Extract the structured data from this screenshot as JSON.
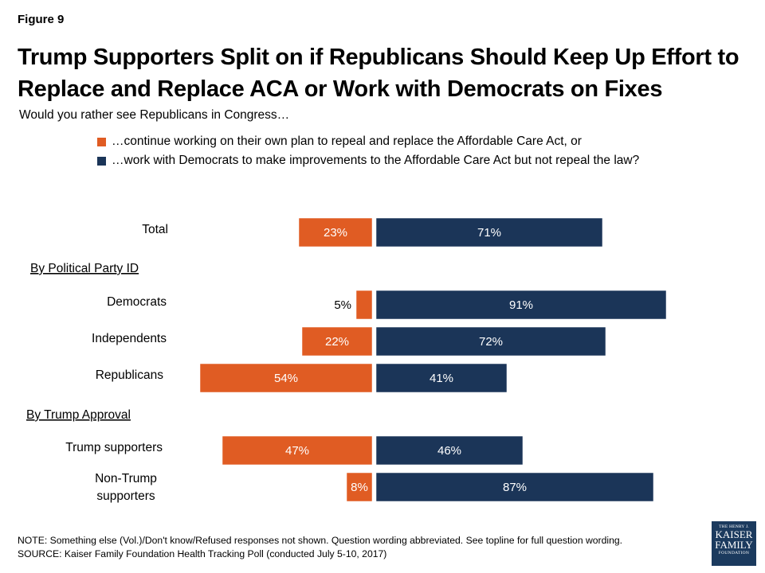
{
  "figure_label": "Figure 9",
  "title": "Trump Supporters Split on if Republicans Should Keep Up Effort to Replace and Replace ACA or Work with Democrats on Fixes",
  "subtitle": "Would you rather see Republicans in Congress…",
  "legend": [
    {
      "label": "…continue working on their own plan to repeal and replace the Affordable Care Act, or",
      "color": "#e05c23"
    },
    {
      "label": "…work with Democrats to make improvements to the Affordable Care Act but not repeal the law?",
      "color": "#1b3558"
    }
  ],
  "chart_data": {
    "type": "bar",
    "orientation": "horizontal-diverging",
    "group_headers": [
      "By Political Party ID",
      "By Trump Approval"
    ],
    "categories": [
      "Total",
      "Democrats",
      "Independents",
      "Republicans",
      "Trump supporters",
      "Non-Trump supporters"
    ],
    "category_groups": [
      null,
      "By Political Party ID",
      "By Political Party ID",
      "By Political Party ID",
      "By Trump Approval",
      "By Trump Approval"
    ],
    "series": [
      {
        "values": [
          23,
          5,
          22,
          54,
          47,
          8
        ],
        "labels": [
          "23%",
          "5%",
          "22%",
          "54%",
          "47%",
          "8%"
        ],
        "color": "#e05c23",
        "direction": "left"
      },
      {
        "values": [
          71,
          91,
          72,
          41,
          46,
          87
        ],
        "labels": [
          "71%",
          "91%",
          "72%",
          "41%",
          "46%",
          "87%"
        ],
        "color": "#1b3558",
        "direction": "right"
      }
    ],
    "grid": false
  },
  "note": "NOTE: Something else (Vol.)/Don't know/Refused responses not shown. Question wording abbreviated. See topline for full question wording.",
  "source": "SOURCE: Kaiser Family Foundation Health Tracking Poll (conducted July 5-10, 2017)",
  "logo": {
    "line1": "THE HENRY J.",
    "line2a": "KAISER",
    "line2b": "FAMILY",
    "line3": "FOUNDATION"
  }
}
